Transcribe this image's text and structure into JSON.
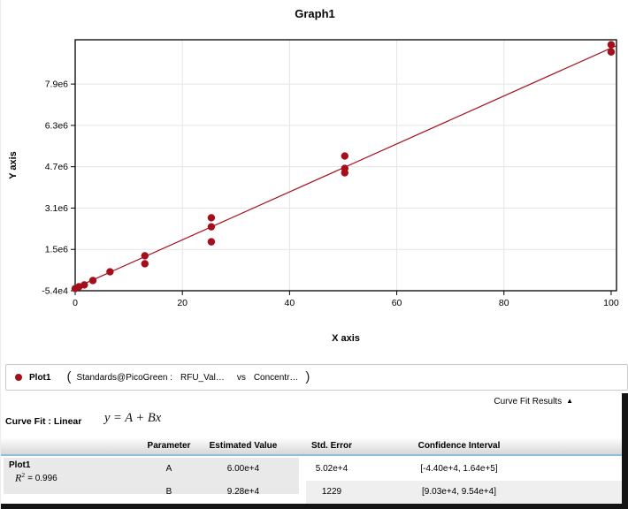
{
  "colors": {
    "accent_red": "#a50f1c",
    "header_underline": "#8fc0d8",
    "grid": "#e5e5e5"
  },
  "chart_data": {
    "type": "scatter",
    "title": "Graph1",
    "xlabel": "X axis",
    "ylabel": "Y axis",
    "xlim": [
      0,
      101
    ],
    "ylim": [
      -54000,
      9660000
    ],
    "grid": true,
    "legend_position": "bottom",
    "x_ticks": [
      {
        "v": 0,
        "label": "0"
      },
      {
        "v": 20,
        "label": "20"
      },
      {
        "v": 40,
        "label": "40"
      },
      {
        "v": 60,
        "label": "60"
      },
      {
        "v": 80,
        "label": "80"
      },
      {
        "v": 100,
        "label": "100"
      }
    ],
    "y_ticks": [
      {
        "v": -54000,
        "label": "-5.4e4"
      },
      {
        "v": 1546000,
        "label": "1.5e6"
      },
      {
        "v": 3146000,
        "label": "3.1e6"
      },
      {
        "v": 4746000,
        "label": "4.7e6"
      },
      {
        "v": 6346000,
        "label": "6.3e6"
      },
      {
        "v": 7946000,
        "label": "7.9e6"
      }
    ],
    "series": [
      {
        "name": "Plot1",
        "color": "#a50f1c",
        "points": [
          [
            0,
            30000
          ],
          [
            0.7,
            100000
          ],
          [
            1.7,
            170000
          ],
          [
            3.3,
            340000
          ],
          [
            6.5,
            680000
          ],
          [
            13,
            990000
          ],
          [
            13,
            1300000
          ],
          [
            25.4,
            1840000
          ],
          [
            25.4,
            2420000
          ],
          [
            25.4,
            2770000
          ],
          [
            50.3,
            4510000
          ],
          [
            50.3,
            4680000
          ],
          [
            50.3,
            5160000
          ],
          [
            100,
            9190000
          ],
          [
            100,
            9470000
          ]
        ]
      }
    ],
    "fit": {
      "type": "linear",
      "equation": "y = A + Bx",
      "A": 60000,
      "B": 92800,
      "r_squared": 0.996
    }
  },
  "legend": {
    "plot_label": "Plot1",
    "open_paren": "(",
    "source": "Standards@PicoGreen :",
    "y_field": "RFU_Val…",
    "separator": "vs",
    "x_field": "Concentr…",
    "close_paren": ")"
  },
  "curve_fit": {
    "results_label": "Curve Fit Results",
    "collapse_icon": "▲",
    "fit_label": "Curve Fit : Linear",
    "equation": "y = A + Bx"
  },
  "results_table": {
    "headers": [
      "Parameter",
      "Estimated Value",
      "Std. Error",
      "Confidence Interval"
    ],
    "fit_summary": {
      "plot_name": "Plot1",
      "r_symbol": "R",
      "r_exponent": "2",
      "r_value": "= 0.996"
    },
    "rows": [
      {
        "parameter": "A",
        "estimated_value": "6.00e+4",
        "std_error": "5.02e+4",
        "confidence_interval": "[-4.40e+4, 1.64e+5]"
      },
      {
        "parameter": "B",
        "estimated_value": "9.28e+4",
        "std_error": "1229",
        "confidence_interval": "[9.03e+4, 9.54e+4]"
      }
    ]
  }
}
